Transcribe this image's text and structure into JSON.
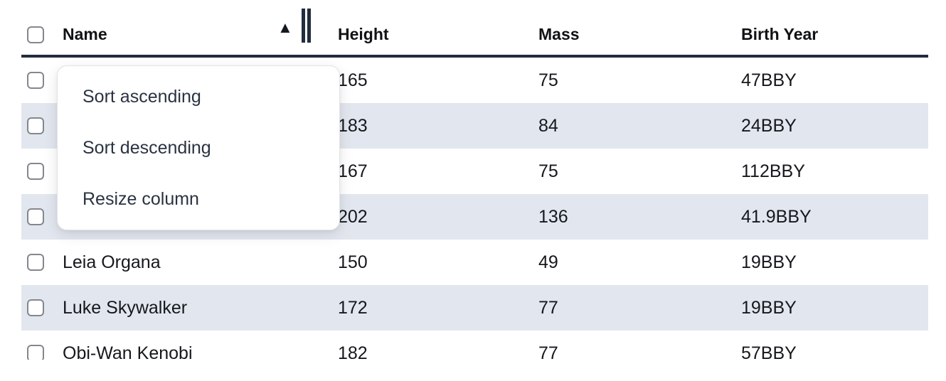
{
  "table": {
    "columns": [
      {
        "label": "Name",
        "sort": "ascending"
      },
      {
        "label": "Height"
      },
      {
        "label": "Mass"
      },
      {
        "label": "Birth Year"
      }
    ],
    "rows": [
      {
        "name": "",
        "height": "165",
        "mass": "75",
        "birth_year": "47BBY"
      },
      {
        "name": "",
        "height": "183",
        "mass": "84",
        "birth_year": "24BBY"
      },
      {
        "name": "",
        "height": "167",
        "mass": "75",
        "birth_year": "112BBY"
      },
      {
        "name": "",
        "height": "202",
        "mass": "136",
        "birth_year": "41.9BBY"
      },
      {
        "name": "Leia Organa",
        "height": "150",
        "mass": "49",
        "birth_year": "19BBY"
      },
      {
        "name": "Luke Skywalker",
        "height": "172",
        "mass": "77",
        "birth_year": "19BBY"
      },
      {
        "name": "Obi-Wan Kenobi",
        "height": "182",
        "mass": "77",
        "birth_year": "57BBY"
      }
    ]
  },
  "context_menu": {
    "items": [
      {
        "label": "Sort ascending"
      },
      {
        "label": "Sort descending"
      },
      {
        "label": "Resize column"
      }
    ]
  },
  "icons": {
    "sort_ascending_glyph": "▲"
  },
  "colors": {
    "header_border": "#222c3d",
    "row_stripe": "#e2e6ee",
    "menu_text": "#2a3342",
    "checkbox_border": "#83878e"
  }
}
